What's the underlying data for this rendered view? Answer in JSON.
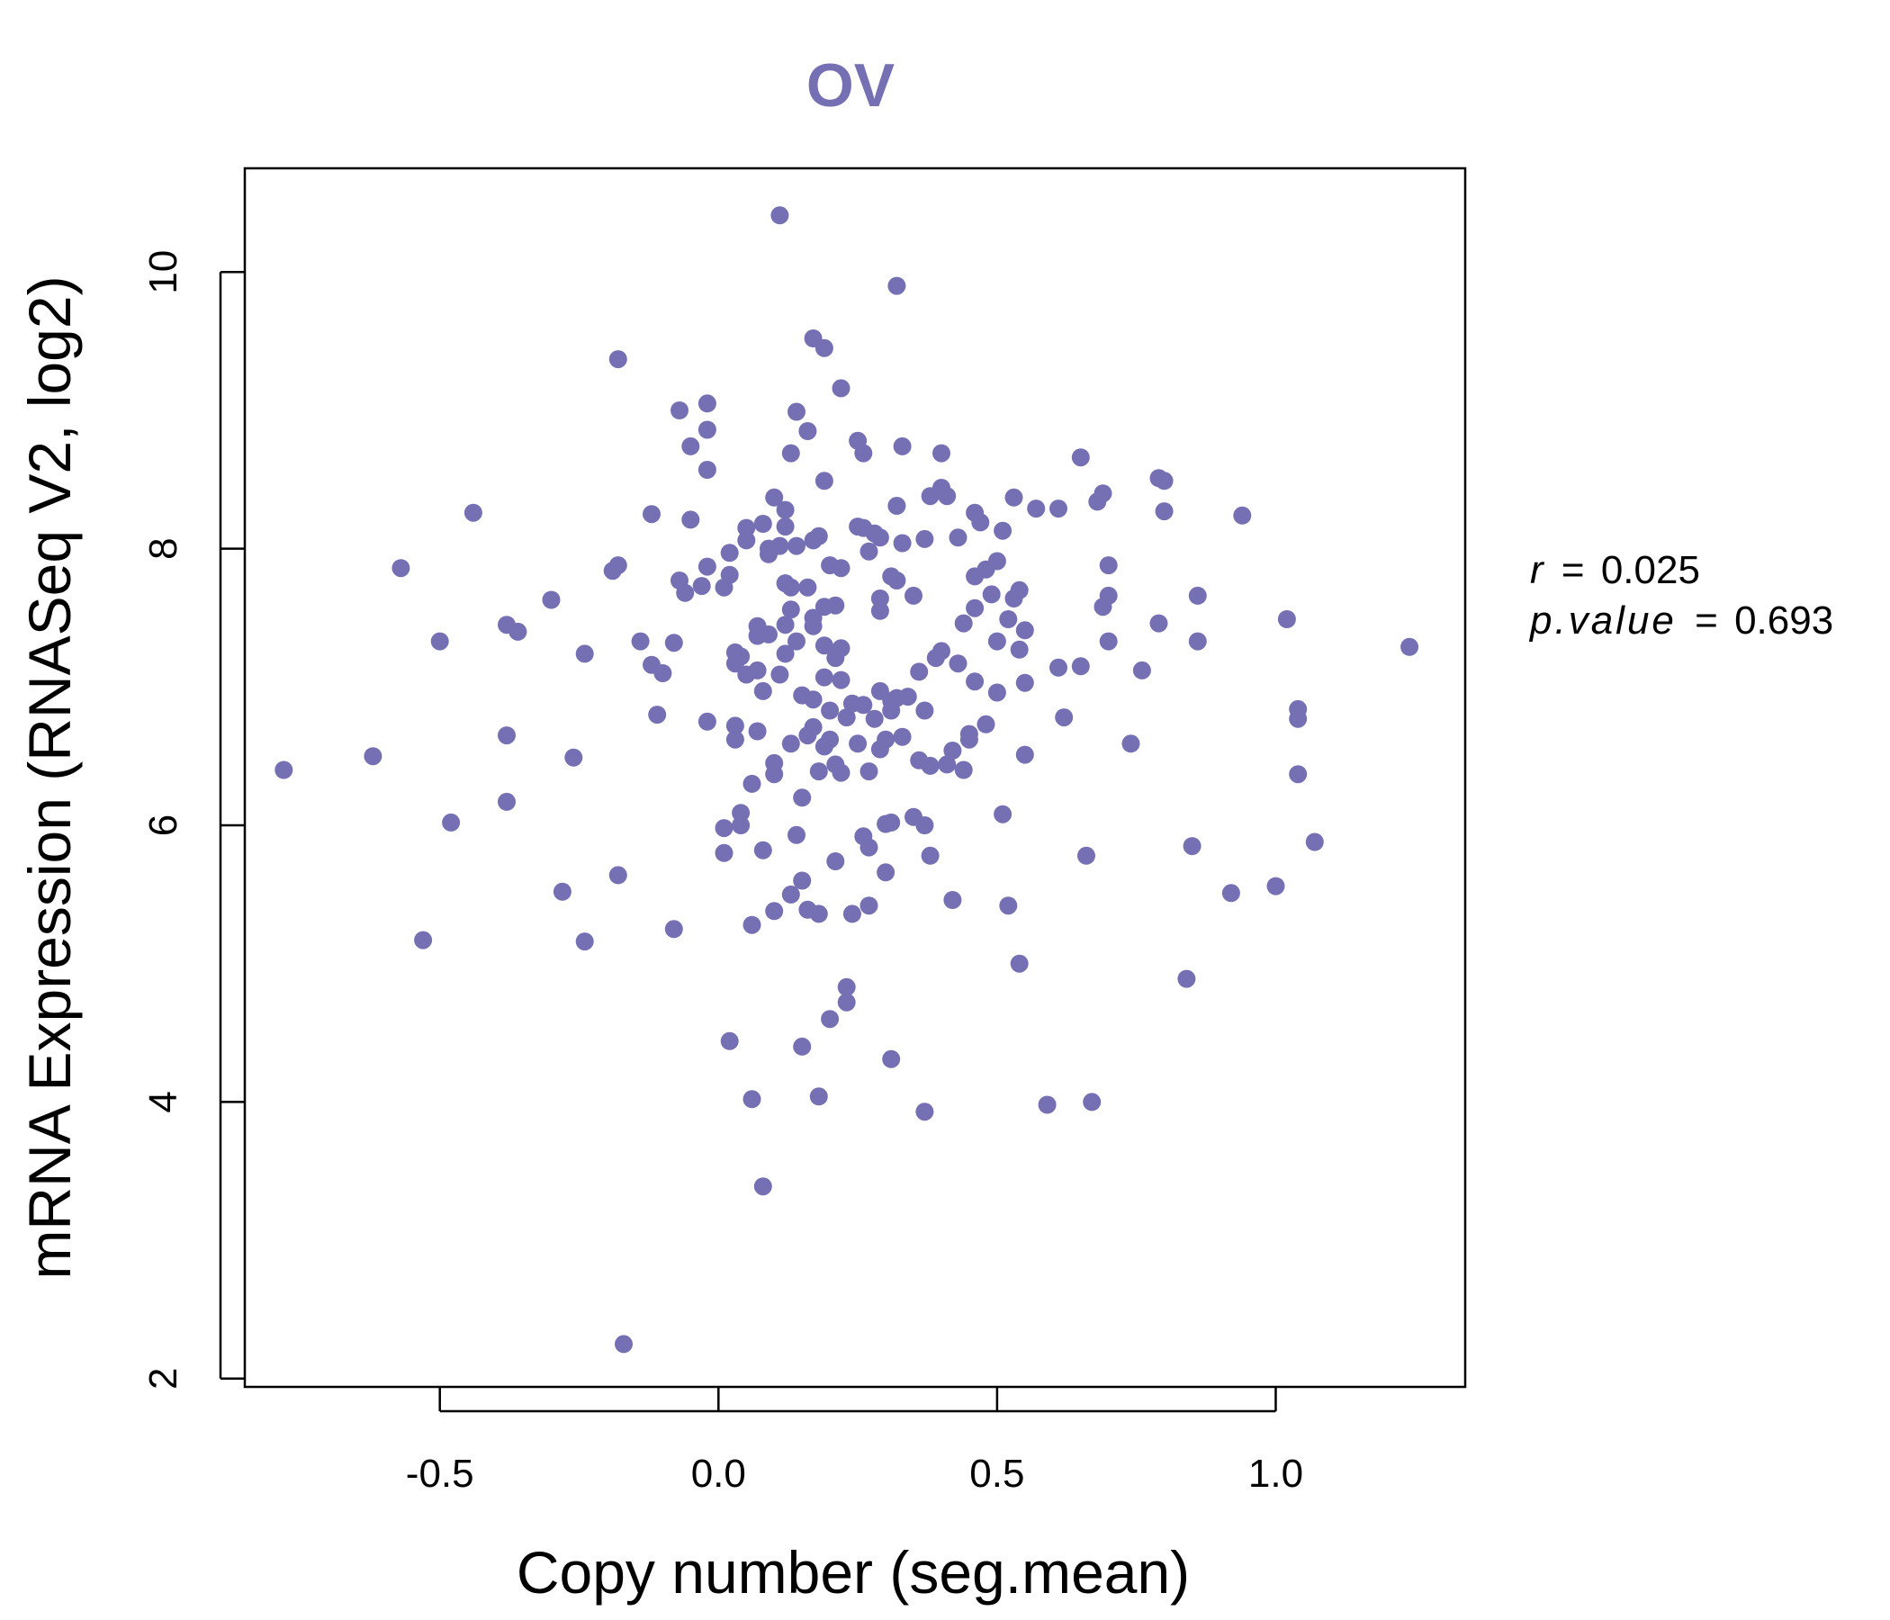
{
  "colors": {
    "point": "#7570b3",
    "title": "#7570b3",
    "axis": "#000000"
  },
  "chart_data": {
    "type": "scatter",
    "title": "OV",
    "xlabel": "Copy number (seg.mean)",
    "ylabel": "mRNA Expression (RNASeq V2, log2)",
    "xlim": [
      -0.85,
      1.34
    ],
    "ylim": [
      1.94,
      10.75
    ],
    "xticks": [
      -0.5,
      0.0,
      0.5,
      1.0
    ],
    "xtick_labels": [
      "-0.5",
      "0.0",
      "0.5",
      "1.0"
    ],
    "yticks": [
      2,
      4,
      6,
      8,
      10
    ],
    "ytick_labels": [
      "2",
      "4",
      "6",
      "8",
      "10"
    ],
    "grid": false,
    "stats": {
      "r_symbol": "r",
      "r_value": "0.025",
      "p_symbol": "p.value",
      "p_value": "0.693"
    },
    "points": [
      [
        -0.78,
        6.4
      ],
      [
        -0.62,
        6.5
      ],
      [
        -0.57,
        7.86
      ],
      [
        -0.53,
        5.17
      ],
      [
        -0.5,
        7.33
      ],
      [
        -0.48,
        6.02
      ],
      [
        -0.44,
        8.26
      ],
      [
        -0.38,
        7.45
      ],
      [
        -0.38,
        6.17
      ],
      [
        -0.38,
        6.65
      ],
      [
        -0.36,
        7.4
      ],
      [
        -0.3,
        7.63
      ],
      [
        -0.28,
        5.52
      ],
      [
        -0.26,
        6.49
      ],
      [
        -0.24,
        7.24
      ],
      [
        -0.24,
        5.16
      ],
      [
        -0.19,
        7.84
      ],
      [
        -0.18,
        7.88
      ],
      [
        -0.18,
        9.37
      ],
      [
        -0.18,
        5.64
      ],
      [
        -0.17,
        2.25
      ],
      [
        -0.14,
        7.33
      ],
      [
        -0.12,
        8.25
      ],
      [
        -0.12,
        7.16
      ],
      [
        -0.11,
        6.8
      ],
      [
        -0.1,
        7.1
      ],
      [
        -0.08,
        7.32
      ],
      [
        -0.08,
        5.25
      ],
      [
        -0.07,
        7.77
      ],
      [
        -0.07,
        9.0
      ],
      [
        -0.06,
        7.68
      ],
      [
        -0.05,
        8.21
      ],
      [
        -0.05,
        8.74
      ],
      [
        -0.03,
        7.73
      ],
      [
        -0.02,
        7.87
      ],
      [
        -0.02,
        9.05
      ],
      [
        -0.02,
        8.86
      ],
      [
        -0.02,
        8.57
      ],
      [
        -0.02,
        6.75
      ],
      [
        0.01,
        5.98
      ],
      [
        0.01,
        7.72
      ],
      [
        0.01,
        5.8
      ],
      [
        0.02,
        7.97
      ],
      [
        0.02,
        7.81
      ],
      [
        0.02,
        4.44
      ],
      [
        0.03,
        7.17
      ],
      [
        0.03,
        7.25
      ],
      [
        0.03,
        6.72
      ],
      [
        0.03,
        6.62
      ],
      [
        0.04,
        7.22
      ],
      [
        0.04,
        6.09
      ],
      [
        0.04,
        6.0
      ],
      [
        0.05,
        7.09
      ],
      [
        0.05,
        8.15
      ],
      [
        0.05,
        8.06
      ],
      [
        0.06,
        6.3
      ],
      [
        0.06,
        5.28
      ],
      [
        0.06,
        4.02
      ],
      [
        0.07,
        7.12
      ],
      [
        0.07,
        7.44
      ],
      [
        0.07,
        7.37
      ],
      [
        0.07,
        6.68
      ],
      [
        0.08,
        8.18
      ],
      [
        0.08,
        6.97
      ],
      [
        0.08,
        5.82
      ],
      [
        0.08,
        3.39
      ],
      [
        0.09,
        7.38
      ],
      [
        0.09,
        8.0
      ],
      [
        0.09,
        7.96
      ],
      [
        0.1,
        6.45
      ],
      [
        0.1,
        6.37
      ],
      [
        0.1,
        5.38
      ],
      [
        0.1,
        8.37
      ],
      [
        0.11,
        8.02
      ],
      [
        0.11,
        7.09
      ],
      [
        0.11,
        10.41
      ],
      [
        0.12,
        8.28
      ],
      [
        0.12,
        8.16
      ],
      [
        0.12,
        7.75
      ],
      [
        0.12,
        7.24
      ],
      [
        0.12,
        7.45
      ],
      [
        0.13,
        8.69
      ],
      [
        0.13,
        7.56
      ],
      [
        0.13,
        7.72
      ],
      [
        0.13,
        5.5
      ],
      [
        0.13,
        6.59
      ],
      [
        0.14,
        8.99
      ],
      [
        0.14,
        7.33
      ],
      [
        0.14,
        5.93
      ],
      [
        0.14,
        8.02
      ],
      [
        0.15,
        5.6
      ],
      [
        0.15,
        4.4
      ],
      [
        0.15,
        6.94
      ],
      [
        0.15,
        6.2
      ],
      [
        0.16,
        8.85
      ],
      [
        0.16,
        7.72
      ],
      [
        0.16,
        6.65
      ],
      [
        0.16,
        5.39
      ],
      [
        0.17,
        9.52
      ],
      [
        0.17,
        8.06
      ],
      [
        0.17,
        7.44
      ],
      [
        0.17,
        7.5
      ],
      [
        0.17,
        6.91
      ],
      [
        0.17,
        6.71
      ],
      [
        0.18,
        8.09
      ],
      [
        0.18,
        5.36
      ],
      [
        0.18,
        4.04
      ],
      [
        0.18,
        6.39
      ],
      [
        0.19,
        9.45
      ],
      [
        0.19,
        8.49
      ],
      [
        0.19,
        7.58
      ],
      [
        0.19,
        7.3
      ],
      [
        0.19,
        7.07
      ],
      [
        0.19,
        6.57
      ],
      [
        0.2,
        7.88
      ],
      [
        0.2,
        6.83
      ],
      [
        0.2,
        6.62
      ],
      [
        0.2,
        4.6
      ],
      [
        0.21,
        7.21
      ],
      [
        0.21,
        6.44
      ],
      [
        0.21,
        7.59
      ],
      [
        0.21,
        5.74
      ],
      [
        0.22,
        9.16
      ],
      [
        0.22,
        7.86
      ],
      [
        0.22,
        7.28
      ],
      [
        0.22,
        7.05
      ],
      [
        0.22,
        6.38
      ],
      [
        0.23,
        6.78
      ],
      [
        0.23,
        4.83
      ],
      [
        0.23,
        4.72
      ],
      [
        0.24,
        6.88
      ],
      [
        0.24,
        5.36
      ],
      [
        0.25,
        8.78
      ],
      [
        0.25,
        8.16
      ],
      [
        0.25,
        6.59
      ],
      [
        0.26,
        8.69
      ],
      [
        0.26,
        8.15
      ],
      [
        0.26,
        6.87
      ],
      [
        0.26,
        5.92
      ],
      [
        0.27,
        7.98
      ],
      [
        0.27,
        6.39
      ],
      [
        0.27,
        5.42
      ],
      [
        0.27,
        5.84
      ],
      [
        0.28,
        8.11
      ],
      [
        0.28,
        6.77
      ],
      [
        0.29,
        8.08
      ],
      [
        0.29,
        6.97
      ],
      [
        0.29,
        6.55
      ],
      [
        0.29,
        7.55
      ],
      [
        0.29,
        7.64
      ],
      [
        0.3,
        6.62
      ],
      [
        0.3,
        6.01
      ],
      [
        0.3,
        5.66
      ],
      [
        0.31,
        7.8
      ],
      [
        0.31,
        6.83
      ],
      [
        0.31,
        6.9
      ],
      [
        0.31,
        6.02
      ],
      [
        0.31,
        4.31
      ],
      [
        0.32,
        9.9
      ],
      [
        0.32,
        8.31
      ],
      [
        0.32,
        7.77
      ],
      [
        0.32,
        6.92
      ],
      [
        0.33,
        8.74
      ],
      [
        0.33,
        8.04
      ],
      [
        0.33,
        6.64
      ],
      [
        0.34,
        6.93
      ],
      [
        0.35,
        7.66
      ],
      [
        0.35,
        6.06
      ],
      [
        0.36,
        7.11
      ],
      [
        0.36,
        6.47
      ],
      [
        0.37,
        8.07
      ],
      [
        0.37,
        6.83
      ],
      [
        0.37,
        6.0
      ],
      [
        0.37,
        3.93
      ],
      [
        0.38,
        8.38
      ],
      [
        0.38,
        6.43
      ],
      [
        0.38,
        5.78
      ],
      [
        0.39,
        7.21
      ],
      [
        0.4,
        8.69
      ],
      [
        0.4,
        8.44
      ],
      [
        0.4,
        7.26
      ],
      [
        0.41,
        8.38
      ],
      [
        0.41,
        6.44
      ],
      [
        0.42,
        6.54
      ],
      [
        0.42,
        5.46
      ],
      [
        0.43,
        8.08
      ],
      [
        0.43,
        7.17
      ],
      [
        0.44,
        7.46
      ],
      [
        0.44,
        6.4
      ],
      [
        0.45,
        6.66
      ],
      [
        0.45,
        6.62
      ],
      [
        0.46,
        8.26
      ],
      [
        0.46,
        7.8
      ],
      [
        0.46,
        7.57
      ],
      [
        0.46,
        7.04
      ],
      [
        0.47,
        8.19
      ],
      [
        0.48,
        6.73
      ],
      [
        0.48,
        7.85
      ],
      [
        0.49,
        7.67
      ],
      [
        0.5,
        7.91
      ],
      [
        0.5,
        7.33
      ],
      [
        0.5,
        6.96
      ],
      [
        0.51,
        6.08
      ],
      [
        0.51,
        8.13
      ],
      [
        0.52,
        7.49
      ],
      [
        0.52,
        5.42
      ],
      [
        0.53,
        8.37
      ],
      [
        0.53,
        7.64
      ],
      [
        0.54,
        7.7
      ],
      [
        0.54,
        7.27
      ],
      [
        0.54,
        5.0
      ],
      [
        0.55,
        7.41
      ],
      [
        0.55,
        7.03
      ],
      [
        0.55,
        6.51
      ],
      [
        0.57,
        8.29
      ],
      [
        0.59,
        3.98
      ],
      [
        0.61,
        7.14
      ],
      [
        0.61,
        8.29
      ],
      [
        0.62,
        6.78
      ],
      [
        0.65,
        7.15
      ],
      [
        0.65,
        8.66
      ],
      [
        0.66,
        5.78
      ],
      [
        0.67,
        4.0
      ],
      [
        0.68,
        8.34
      ],
      [
        0.69,
        7.58
      ],
      [
        0.69,
        8.4
      ],
      [
        0.7,
        7.88
      ],
      [
        0.7,
        7.66
      ],
      [
        0.7,
        7.33
      ],
      [
        0.74,
        6.59
      ],
      [
        0.76,
        7.12
      ],
      [
        0.79,
        8.51
      ],
      [
        0.79,
        7.46
      ],
      [
        0.8,
        8.49
      ],
      [
        0.8,
        8.27
      ],
      [
        0.84,
        4.89
      ],
      [
        0.85,
        5.85
      ],
      [
        0.86,
        7.66
      ],
      [
        0.86,
        7.33
      ],
      [
        0.92,
        5.51
      ],
      [
        0.94,
        8.24
      ],
      [
        1.0,
        5.56
      ],
      [
        1.02,
        7.49
      ],
      [
        1.04,
        6.84
      ],
      [
        1.04,
        6.77
      ],
      [
        1.04,
        6.37
      ],
      [
        1.07,
        5.88
      ],
      [
        1.24,
        7.29
      ]
    ]
  }
}
